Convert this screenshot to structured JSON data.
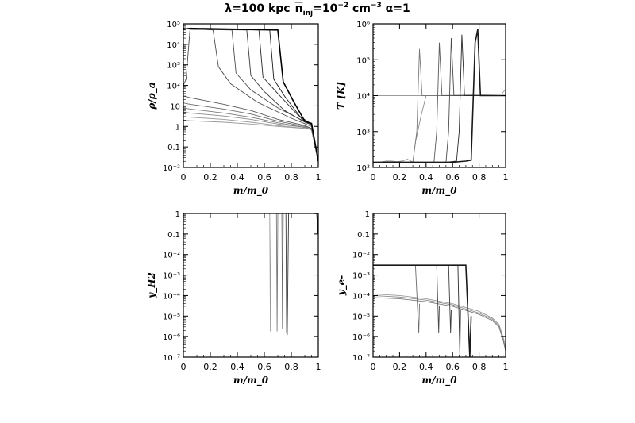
{
  "title": "λ=100 kpc  n̄_inj=10⁻² cm⁻³  α=1",
  "title_parts": {
    "lambda": "λ=100 kpc",
    "n": "n",
    "n_sub": "inj",
    "n_val": "=10",
    "n_exp": "−2",
    "units": " cm",
    "units_exp": "−3",
    "alpha": " α=1"
  },
  "chart_data": [
    {
      "type": "line",
      "panel": "top-left",
      "xlabel": "m/m_0",
      "ylabel": "ρ/ρ_a",
      "xlim": [
        0,
        1
      ],
      "ylim": [
        0.01,
        100000
      ],
      "yscale": "log",
      "xticks": [
        "0",
        "0.2",
        "0.4",
        "0.6",
        "0.8",
        "1"
      ],
      "yticks": [
        "10⁻²",
        "0.1",
        "1",
        "10",
        "10²",
        "10³",
        "10⁴",
        "10⁵"
      ],
      "series_note": "many time snapshots (grey curves); dense sheet at ~5e4 advancing outward",
      "series": [
        {
          "x": [
            0,
            0.05,
            0.3,
            0.5,
            0.7,
            0.9,
            0.95,
            1.0
          ],
          "y": [
            2,
            1.9,
            1.6,
            1.3,
            1.0,
            0.8,
            0.7,
            0.02
          ]
        },
        {
          "x": [
            0,
            0.05,
            0.3,
            0.5,
            0.7,
            0.9,
            0.95,
            1.0
          ],
          "y": [
            3,
            2.8,
            2.2,
            1.6,
            1.1,
            0.8,
            0.7,
            0.02
          ]
        },
        {
          "x": [
            0,
            0.05,
            0.3,
            0.5,
            0.7,
            0.9,
            0.95,
            1.0
          ],
          "y": [
            5,
            4.5,
            3.2,
            2.2,
            1.3,
            0.9,
            0.7,
            0.02
          ]
        },
        {
          "x": [
            0,
            0.05,
            0.3,
            0.5,
            0.7,
            0.9,
            0.95,
            1.0
          ],
          "y": [
            8,
            7,
            4.5,
            2.8,
            1.5,
            0.9,
            0.7,
            0.02
          ]
        },
        {
          "x": [
            0,
            0.05,
            0.3,
            0.5,
            0.7,
            0.9,
            0.95,
            1.0
          ],
          "y": [
            14,
            12,
            7,
            4,
            1.8,
            1.0,
            0.8,
            0.02
          ]
        },
        {
          "x": [
            0,
            0.05,
            0.3,
            0.5,
            0.7,
            0.9,
            0.95,
            1.0
          ],
          "y": [
            30,
            25,
            12,
            6,
            2.2,
            1.1,
            0.8,
            0.02
          ]
        },
        {
          "x": [
            0,
            0.02,
            0.05,
            0.22,
            0.26,
            0.35,
            0.55,
            0.8,
            0.95,
            1.0
          ],
          "y": [
            100,
            200,
            60000,
            50000,
            800,
            120,
            15,
            2.5,
            1.0,
            0.02
          ]
        },
        {
          "x": [
            0,
            0.05,
            0.36,
            0.39,
            0.5,
            0.7,
            0.85,
            0.95,
            1.0
          ],
          "y": [
            60000,
            55000,
            50000,
            400,
            60,
            8,
            2.5,
            1.2,
            0.02
          ]
        },
        {
          "x": [
            0,
            0.05,
            0.47,
            0.5,
            0.6,
            0.75,
            0.9,
            0.95,
            1.0
          ],
          "y": [
            60000,
            55000,
            50000,
            300,
            50,
            6,
            1.6,
            1.2,
            0.02
          ]
        },
        {
          "x": [
            0,
            0.05,
            0.56,
            0.59,
            0.7,
            0.85,
            0.95,
            1.0
          ],
          "y": [
            60000,
            55000,
            50000,
            250,
            40,
            3.5,
            1.3,
            0.02
          ]
        },
        {
          "x": [
            0,
            0.05,
            0.64,
            0.67,
            0.75,
            0.88,
            0.95,
            1.0
          ],
          "y": [
            60000,
            55000,
            50000,
            200,
            30,
            2.2,
            1.3,
            0.02
          ]
        },
        {
          "x": [
            0,
            0.05,
            0.7,
            0.74,
            0.82,
            0.9,
            0.95,
            1.0
          ],
          "y": [
            55000,
            60000,
            50000,
            150,
            15,
            1.8,
            1.4,
            0.02
          ]
        }
      ]
    },
    {
      "type": "line",
      "panel": "top-right",
      "xlabel": "m/m_0",
      "ylabel": "T [K]",
      "xlim": [
        0,
        1
      ],
      "ylim": [
        100,
        1000000
      ],
      "yscale": "log",
      "xticks": [
        "0",
        "0.2",
        "0.4",
        "0.6",
        "0.8",
        "1"
      ],
      "yticks": [
        "10²",
        "10³",
        "10⁴",
        "10⁵",
        "10⁶"
      ],
      "series_note": "most gas at ~1e4 K; cold sheet at ~1.5e2 K; shock spikes at the front",
      "series": [
        {
          "x": [
            0,
            0.5,
            0.97,
            1.0
          ],
          "y": [
            10000,
            10000,
            11000,
            15000
          ]
        },
        {
          "x": [
            0,
            0.05,
            0.1,
            0.14,
            0.18,
            0.22,
            0.26,
            0.3,
            0.32,
            0.36,
            0.4,
            1.0
          ],
          "y": [
            130,
            140,
            150,
            150,
            145,
            150,
            170,
            140,
            500,
            2500,
            10000,
            10000
          ]
        },
        {
          "x": [
            0,
            0.05,
            0.2,
            0.3,
            0.33,
            0.35,
            0.37,
            0.4,
            1.0
          ],
          "y": [
            140,
            140,
            140,
            140,
            1000,
            200000,
            10000,
            10000,
            10000
          ]
        },
        {
          "x": [
            0,
            0.3,
            0.4,
            0.46,
            0.48,
            0.5,
            0.52,
            1.0
          ],
          "y": [
            140,
            140,
            140,
            140,
            1000,
            300000,
            10000,
            10000
          ]
        },
        {
          "x": [
            0,
            0.3,
            0.5,
            0.55,
            0.57,
            0.59,
            0.61,
            1.0
          ],
          "y": [
            140,
            140,
            140,
            140,
            1000,
            400000,
            10000,
            10000
          ]
        },
        {
          "x": [
            0,
            0.3,
            0.55,
            0.63,
            0.65,
            0.67,
            0.69,
            1.0
          ],
          "y": [
            140,
            140,
            140,
            150,
            1000,
            500000,
            10000,
            10000
          ]
        },
        {
          "x": [
            0,
            0.3,
            0.6,
            0.7,
            0.74,
            0.77,
            0.79,
            0.81,
            1.0
          ],
          "y": [
            140,
            140,
            140,
            150,
            160,
            300000,
            700000,
            10000,
            10000
          ]
        }
      ]
    },
    {
      "type": "line",
      "panel": "bottom-left",
      "xlabel": "m/m_0",
      "ylabel": "y_H2",
      "xlim": [
        0,
        1
      ],
      "ylim": [
        1e-07,
        1
      ],
      "yscale": "log",
      "xticks": [
        "0",
        "0.2",
        "0.4",
        "0.6",
        "0.8",
        "1"
      ],
      "yticks": [
        "10⁻⁷",
        "10⁻⁶",
        "10⁻⁵",
        "10⁻⁴",
        "10⁻³",
        "10⁻²",
        "0.1",
        "1"
      ],
      "series_note": "near-vertical fraction spikes between m/m0 ~0.65 and 0.8",
      "series": [
        {
          "x": [
            0.64,
            0.645,
            0.65
          ],
          "y": [
            1,
            1.8e-06,
            1
          ]
        },
        {
          "x": [
            0.69,
            0.695,
            0.7
          ],
          "y": [
            1,
            1.8e-06,
            1
          ]
        },
        {
          "x": [
            0.73,
            0.735,
            0.74
          ],
          "y": [
            1,
            2.5e-06,
            1
          ]
        },
        {
          "x": [
            0.76,
            0.765,
            0.77,
            0.78
          ],
          "y": [
            1,
            1.5e-06,
            1.2e-06,
            1
          ]
        },
        {
          "x": [
            0.97,
            0.99,
            1.0
          ],
          "y": [
            1,
            1,
            0.1
          ]
        }
      ]
    },
    {
      "type": "line",
      "panel": "bottom-right",
      "xlabel": "m/m_0",
      "ylabel": "y_e-",
      "xlim": [
        0,
        1
      ],
      "ylim": [
        1e-07,
        1
      ],
      "yscale": "log",
      "xticks": [
        "0",
        "0.2",
        "0.4",
        "0.6",
        "0.8",
        "1"
      ],
      "yticks": [
        "10⁻⁷",
        "10⁻⁶",
        "10⁻⁵",
        "10⁻⁴",
        "10⁻³",
        "10⁻²",
        "0.1",
        "1"
      ],
      "series_note": "electron fraction ~1e-4 declining toward edge; sheet at ~3e-3",
      "series": [
        {
          "x": [
            0,
            0.2,
            0.4,
            0.6,
            0.8,
            0.9,
            0.95,
            0.98,
            1.0
          ],
          "y": [
            0.00012,
            0.0001,
            7e-05,
            4e-05,
            1.7e-05,
            8e-06,
            4e-06,
            1e-06,
            3e-07
          ]
        },
        {
          "x": [
            0,
            0.2,
            0.4,
            0.6,
            0.8,
            0.9,
            0.95,
            0.98,
            1.0
          ],
          "y": [
            0.0001,
            8.5e-05,
            6e-05,
            3.5e-05,
            1.4e-05,
            7e-06,
            3.5e-06,
            8e-07,
            2e-07
          ]
        },
        {
          "x": [
            0,
            0.2,
            0.4,
            0.6,
            0.8,
            0.9,
            0.95,
            0.98,
            1.0
          ],
          "y": [
            8e-05,
            7e-05,
            5e-05,
            3e-05,
            1.2e-05,
            6e-06,
            3e-06,
            7e-07,
            2e-07
          ]
        },
        {
          "x": [
            0,
            0.05,
            0.32,
            0.345,
            0.35
          ],
          "y": [
            0.003,
            0.003,
            0.003,
            1.5e-06,
            4e-05
          ]
        },
        {
          "x": [
            0,
            0.05,
            0.48,
            0.495,
            0.5
          ],
          "y": [
            0.003,
            0.003,
            0.003,
            1.5e-06,
            3e-05
          ]
        },
        {
          "x": [
            0,
            0.05,
            0.57,
            0.585,
            0.59
          ],
          "y": [
            0.003,
            0.003,
            0.003,
            1.5e-06,
            2e-05
          ]
        },
        {
          "x": [
            0,
            0.05,
            0.64,
            0.655,
            0.66
          ],
          "y": [
            0.003,
            0.003,
            0.003,
            1e-07,
            2e-05
          ]
        },
        {
          "x": [
            0,
            0.05,
            0.7,
            0.73,
            0.74
          ],
          "y": [
            0.003,
            0.003,
            0.003,
            1e-07,
            1e-05
          ]
        }
      ]
    }
  ]
}
